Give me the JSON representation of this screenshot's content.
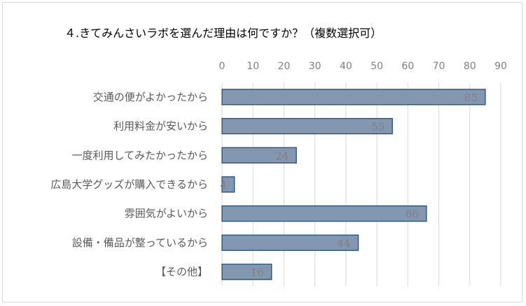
{
  "chart_data": {
    "type": "bar",
    "orientation": "horizontal",
    "title": "４.きてみんさいラボを選んだ理由は何ですか？（複数選択可）",
    "categories": [
      "交通の便がよかったから",
      "利用料金が安いから",
      "一度利用してみたかったから",
      "広島大学グッズが購入できるから",
      "雰囲気がよいから",
      "設備・備品が整っているから",
      "【その他】"
    ],
    "values": [
      85,
      55,
      24,
      4,
      66,
      44,
      16
    ],
    "xlim": [
      0,
      90
    ],
    "xticks": [
      0,
      10,
      20,
      30,
      40,
      50,
      60,
      70,
      80,
      90
    ],
    "axis_position": "top",
    "grid": true,
    "data_labels": true,
    "bar_color": "#8497b0",
    "bar_border_color": "#1f4e79"
  }
}
